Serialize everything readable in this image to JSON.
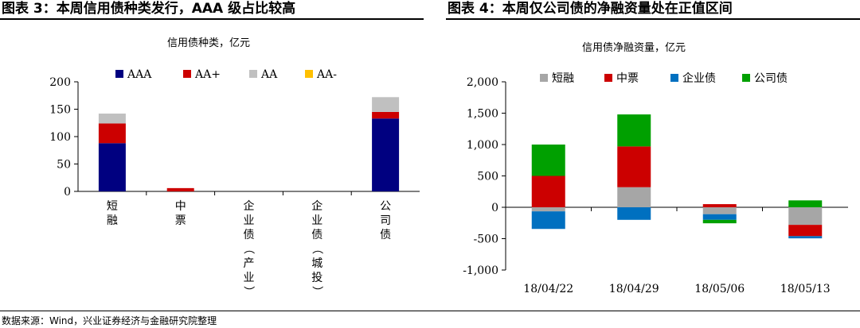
{
  "panels": {
    "left": {
      "heading": "图表 3：本周信用债种类发行，AAA 级占比较高"
    },
    "right": {
      "heading": "图表 4：本周仅公司债的净融资量处在正值区间"
    }
  },
  "source": "数据来源：Wind，兴业证券经济与金融研究院整理",
  "chart_data": [
    {
      "type": "bar",
      "stacked": true,
      "title": "信用债种类，亿元",
      "categories": [
        "短融",
        "中票",
        "企业债（产业）",
        "企业债（城投）",
        "公司债"
      ],
      "series": [
        {
          "name": "AAA",
          "color": "#000080",
          "values": [
            88,
            0,
            0,
            0,
            133
          ]
        },
        {
          "name": "AA+",
          "color": "#cc0000",
          "values": [
            36,
            6,
            0,
            0,
            12
          ]
        },
        {
          "name": "AA",
          "color": "#c0c0c0",
          "values": [
            18,
            0,
            0,
            0,
            27
          ]
        },
        {
          "name": "AA-",
          "color": "#ffc000",
          "values": [
            0,
            0,
            0,
            0,
            0
          ]
        }
      ],
      "ylim": [
        0,
        200
      ],
      "yticks": [
        0,
        50,
        100,
        150,
        200
      ],
      "ytick_labels": [
        "0",
        "50",
        "100",
        "150",
        "200"
      ],
      "legend_position": "top",
      "grid": false
    },
    {
      "type": "bar",
      "stacked": true,
      "title": "信用债净融资量，亿元",
      "categories": [
        "18/04/22",
        "18/04/29",
        "18/05/06",
        "18/05/13"
      ],
      "series": [
        {
          "name": "短融",
          "color": "#a6a6a6",
          "values": [
            -65,
            320,
            -110,
            -280
          ]
        },
        {
          "name": "中票",
          "color": "#cc0000",
          "values": [
            500,
            650,
            50,
            -180
          ]
        },
        {
          "name": "企业债",
          "color": "#0070c0",
          "values": [
            -280,
            -200,
            -90,
            -35
          ]
        },
        {
          "name": "公司债",
          "color": "#00a000",
          "values": [
            500,
            510,
            -55,
            110
          ]
        }
      ],
      "ylim": [
        -1000,
        2000
      ],
      "yticks": [
        -1000,
        -500,
        0,
        500,
        1000,
        1500,
        2000
      ],
      "ytick_labels": [
        "-1,000",
        "-500",
        "0",
        "500",
        "1,000",
        "1,500",
        "2,000"
      ],
      "legend_position": "top",
      "grid": false
    }
  ]
}
